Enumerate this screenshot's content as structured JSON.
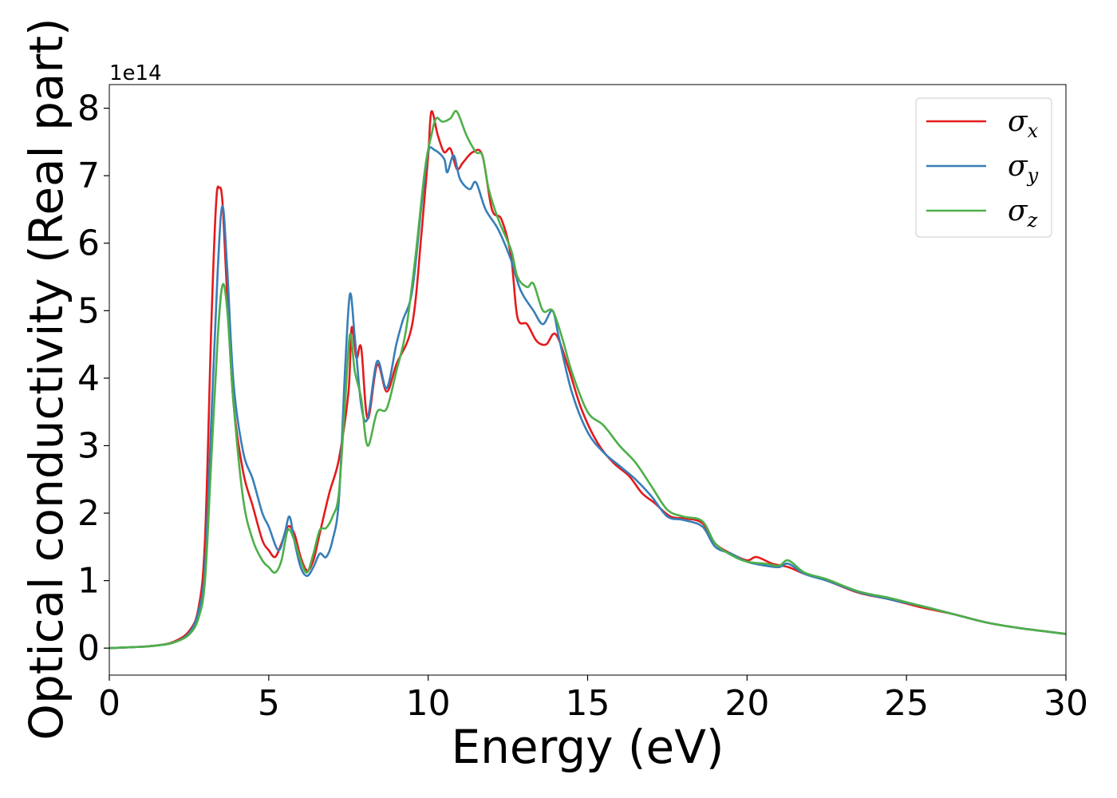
{
  "chart_data": {
    "type": "line",
    "title": "",
    "xlabel": "Energy (eV)",
    "ylabel": "Optical conductivity (Real part)",
    "y_offset_label": "1e14",
    "xlim": [
      0,
      30
    ],
    "ylim": [
      -0.4,
      8.35
    ],
    "x_ticks": [
      0,
      5,
      10,
      15,
      20,
      25,
      30
    ],
    "y_ticks": [
      0,
      1,
      2,
      3,
      4,
      5,
      6,
      7,
      8
    ],
    "grid": false,
    "legend_position": "top-right",
    "series": [
      {
        "name": "σx",
        "legend_symbol": "σ",
        "legend_subscript": "x",
        "color": "#e41a1c",
        "points": [
          [
            0,
            0
          ],
          [
            1,
            0.02
          ],
          [
            1.5,
            0.04
          ],
          [
            2,
            0.09
          ],
          [
            2.5,
            0.25
          ],
          [
            2.8,
            0.6
          ],
          [
            3.0,
            1.6
          ],
          [
            3.2,
            4.8
          ],
          [
            3.35,
            6.6
          ],
          [
            3.45,
            6.82
          ],
          [
            3.55,
            6.6
          ],
          [
            3.7,
            5.2
          ],
          [
            3.9,
            3.6
          ],
          [
            4.2,
            2.6
          ],
          [
            4.5,
            2.1
          ],
          [
            4.8,
            1.6
          ],
          [
            5.0,
            1.45
          ],
          [
            5.2,
            1.35
          ],
          [
            5.4,
            1.55
          ],
          [
            5.6,
            1.8
          ],
          [
            5.8,
            1.7
          ],
          [
            6.0,
            1.35
          ],
          [
            6.2,
            1.15
          ],
          [
            6.4,
            1.3
          ],
          [
            6.6,
            1.7
          ],
          [
            6.9,
            2.3
          ],
          [
            7.2,
            2.8
          ],
          [
            7.5,
            3.8
          ],
          [
            7.6,
            4.75
          ],
          [
            7.75,
            4.3
          ],
          [
            7.9,
            4.45
          ],
          [
            8.1,
            3.4
          ],
          [
            8.4,
            4.2
          ],
          [
            8.7,
            3.8
          ],
          [
            9.0,
            4.2
          ],
          [
            9.5,
            4.8
          ],
          [
            9.8,
            6.2
          ],
          [
            10.0,
            7.3
          ],
          [
            10.1,
            7.95
          ],
          [
            10.3,
            7.6
          ],
          [
            10.5,
            7.35
          ],
          [
            10.7,
            7.4
          ],
          [
            10.9,
            7.1
          ],
          [
            11.1,
            7.2
          ],
          [
            11.4,
            7.35
          ],
          [
            11.7,
            7.3
          ],
          [
            12.0,
            6.5
          ],
          [
            12.3,
            6.35
          ],
          [
            12.6,
            5.8
          ],
          [
            12.8,
            4.9
          ],
          [
            13.1,
            4.8
          ],
          [
            13.4,
            4.55
          ],
          [
            13.7,
            4.5
          ],
          [
            14.0,
            4.65
          ],
          [
            14.4,
            4.15
          ],
          [
            14.8,
            3.55
          ],
          [
            15.3,
            3.05
          ],
          [
            15.8,
            2.75
          ],
          [
            16.3,
            2.55
          ],
          [
            16.7,
            2.3
          ],
          [
            17.1,
            2.15
          ],
          [
            17.6,
            1.95
          ],
          [
            18.1,
            1.92
          ],
          [
            18.6,
            1.85
          ],
          [
            19.0,
            1.55
          ],
          [
            19.5,
            1.4
          ],
          [
            20.0,
            1.3
          ],
          [
            20.3,
            1.35
          ],
          [
            20.8,
            1.25
          ],
          [
            21.3,
            1.2
          ],
          [
            21.8,
            1.1
          ],
          [
            22.5,
            1.0
          ],
          [
            23.5,
            0.82
          ],
          [
            24.5,
            0.72
          ],
          [
            25.5,
            0.6
          ],
          [
            26.5,
            0.5
          ],
          [
            27.5,
            0.38
          ],
          [
            28.5,
            0.3
          ],
          [
            29.5,
            0.24
          ],
          [
            30,
            0.21
          ]
        ]
      },
      {
        "name": "σy",
        "legend_symbol": "σ",
        "legend_subscript": "y",
        "color": "#377eb8",
        "points": [
          [
            0,
            0
          ],
          [
            1,
            0.02
          ],
          [
            1.5,
            0.04
          ],
          [
            2,
            0.08
          ],
          [
            2.5,
            0.22
          ],
          [
            2.8,
            0.55
          ],
          [
            3.0,
            1.2
          ],
          [
            3.2,
            3.4
          ],
          [
            3.4,
            5.6
          ],
          [
            3.55,
            6.55
          ],
          [
            3.7,
            5.6
          ],
          [
            3.9,
            3.9
          ],
          [
            4.2,
            2.9
          ],
          [
            4.5,
            2.5
          ],
          [
            4.8,
            2.0
          ],
          [
            5.0,
            1.8
          ],
          [
            5.3,
            1.45
          ],
          [
            5.5,
            1.7
          ],
          [
            5.65,
            1.95
          ],
          [
            5.8,
            1.6
          ],
          [
            6.0,
            1.2
          ],
          [
            6.2,
            1.07
          ],
          [
            6.4,
            1.2
          ],
          [
            6.6,
            1.4
          ],
          [
            6.8,
            1.35
          ],
          [
            7.0,
            1.6
          ],
          [
            7.2,
            2.2
          ],
          [
            7.4,
            4.2
          ],
          [
            7.55,
            5.25
          ],
          [
            7.7,
            4.6
          ],
          [
            7.9,
            3.6
          ],
          [
            8.1,
            3.4
          ],
          [
            8.4,
            4.25
          ],
          [
            8.7,
            3.85
          ],
          [
            9.0,
            4.5
          ],
          [
            9.2,
            4.85
          ],
          [
            9.5,
            5.3
          ],
          [
            9.8,
            6.6
          ],
          [
            10.0,
            7.35
          ],
          [
            10.2,
            7.38
          ],
          [
            10.5,
            7.25
          ],
          [
            10.6,
            7.05
          ],
          [
            10.8,
            7.3
          ],
          [
            11.0,
            6.95
          ],
          [
            11.3,
            6.8
          ],
          [
            11.5,
            6.9
          ],
          [
            11.8,
            6.5
          ],
          [
            12.2,
            6.2
          ],
          [
            12.6,
            5.75
          ],
          [
            12.9,
            5.3
          ],
          [
            13.3,
            5.0
          ],
          [
            13.6,
            4.8
          ],
          [
            13.9,
            5.0
          ],
          [
            14.1,
            4.6
          ],
          [
            14.5,
            3.8
          ],
          [
            15.0,
            3.2
          ],
          [
            15.5,
            2.9
          ],
          [
            16.0,
            2.7
          ],
          [
            16.5,
            2.5
          ],
          [
            17.0,
            2.25
          ],
          [
            17.5,
            1.95
          ],
          [
            18.0,
            1.9
          ],
          [
            18.6,
            1.8
          ],
          [
            19.0,
            1.5
          ],
          [
            19.5,
            1.4
          ],
          [
            20.0,
            1.28
          ],
          [
            20.6,
            1.22
          ],
          [
            21.0,
            1.2
          ],
          [
            21.3,
            1.25
          ],
          [
            21.8,
            1.1
          ],
          [
            22.5,
            1.0
          ],
          [
            23.5,
            0.83
          ],
          [
            24.5,
            0.72
          ],
          [
            25.5,
            0.62
          ],
          [
            26.5,
            0.5
          ],
          [
            27.5,
            0.38
          ],
          [
            28.5,
            0.3
          ],
          [
            29.5,
            0.24
          ],
          [
            30,
            0.21
          ]
        ]
      },
      {
        "name": "σz",
        "legend_symbol": "σ",
        "legend_subscript": "z",
        "color": "#4daf4a",
        "points": [
          [
            0,
            0
          ],
          [
            1,
            0.02
          ],
          [
            1.5,
            0.04
          ],
          [
            2,
            0.08
          ],
          [
            2.5,
            0.2
          ],
          [
            2.8,
            0.45
          ],
          [
            3.0,
            1.0
          ],
          [
            3.2,
            2.8
          ],
          [
            3.4,
            4.6
          ],
          [
            3.55,
            5.38
          ],
          [
            3.7,
            5.0
          ],
          [
            3.9,
            3.6
          ],
          [
            4.2,
            2.2
          ],
          [
            4.5,
            1.6
          ],
          [
            4.8,
            1.3
          ],
          [
            5.0,
            1.2
          ],
          [
            5.2,
            1.12
          ],
          [
            5.4,
            1.3
          ],
          [
            5.6,
            1.75
          ],
          [
            5.8,
            1.6
          ],
          [
            6.0,
            1.3
          ],
          [
            6.2,
            1.12
          ],
          [
            6.4,
            1.4
          ],
          [
            6.6,
            1.75
          ],
          [
            6.8,
            1.78
          ],
          [
            7.0,
            1.95
          ],
          [
            7.2,
            2.3
          ],
          [
            7.4,
            3.7
          ],
          [
            7.55,
            4.65
          ],
          [
            7.7,
            4.1
          ],
          [
            7.9,
            3.7
          ],
          [
            8.1,
            3.0
          ],
          [
            8.4,
            3.5
          ],
          [
            8.7,
            3.55
          ],
          [
            9.0,
            4.1
          ],
          [
            9.3,
            4.7
          ],
          [
            9.6,
            5.8
          ],
          [
            9.9,
            7.1
          ],
          [
            10.1,
            7.6
          ],
          [
            10.25,
            7.85
          ],
          [
            10.45,
            7.8
          ],
          [
            10.7,
            7.85
          ],
          [
            10.9,
            7.95
          ],
          [
            11.2,
            7.6
          ],
          [
            11.5,
            7.35
          ],
          [
            11.7,
            7.3
          ],
          [
            11.9,
            6.8
          ],
          [
            12.2,
            6.35
          ],
          [
            12.6,
            5.9
          ],
          [
            12.8,
            5.5
          ],
          [
            13.1,
            5.35
          ],
          [
            13.3,
            5.4
          ],
          [
            13.6,
            5.0
          ],
          [
            13.9,
            5.0
          ],
          [
            14.2,
            4.6
          ],
          [
            14.5,
            4.1
          ],
          [
            15.0,
            3.5
          ],
          [
            15.5,
            3.3
          ],
          [
            16.0,
            3.0
          ],
          [
            16.5,
            2.75
          ],
          [
            17.0,
            2.4
          ],
          [
            17.5,
            2.05
          ],
          [
            18.0,
            1.95
          ],
          [
            18.6,
            1.88
          ],
          [
            19.0,
            1.55
          ],
          [
            19.5,
            1.38
          ],
          [
            20.0,
            1.28
          ],
          [
            20.6,
            1.25
          ],
          [
            21.0,
            1.22
          ],
          [
            21.3,
            1.3
          ],
          [
            21.8,
            1.12
          ],
          [
            22.5,
            1.02
          ],
          [
            23.5,
            0.84
          ],
          [
            24.5,
            0.74
          ],
          [
            25.5,
            0.62
          ],
          [
            26.5,
            0.5
          ],
          [
            27.5,
            0.38
          ],
          [
            28.5,
            0.3
          ],
          [
            29.5,
            0.24
          ],
          [
            30,
            0.21
          ]
        ]
      }
    ]
  }
}
